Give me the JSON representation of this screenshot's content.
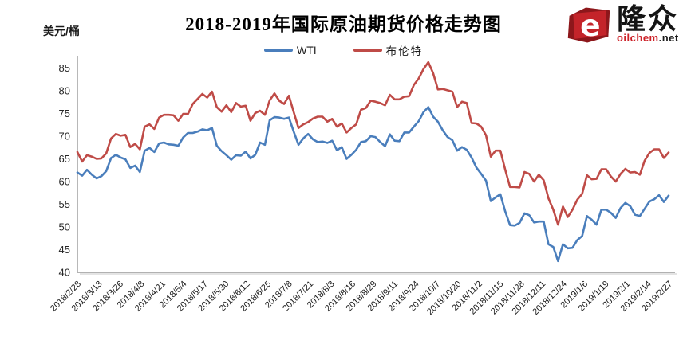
{
  "header": {
    "title": "2018-2019年国际原油期货价格走势图",
    "unit_label": "美元/桶",
    "logo": {
      "brand": "隆众",
      "domain_primary": "oilchem",
      "domain_suffix": ".net",
      "brand_red": "#c4242a",
      "brand_dark_red": "#8d171b"
    }
  },
  "legend": [
    {
      "label": "WTI",
      "color": "#4a7ebc"
    },
    {
      "label": "布伦特",
      "color": "#bf4b47"
    }
  ],
  "chart_data": {
    "type": "line",
    "title": "2018-2019年国际原油期货价格走势图",
    "xlabel": "",
    "ylabel": "美元/桶",
    "ylim": [
      40,
      85
    ],
    "yticks": [
      40,
      45,
      50,
      55,
      60,
      65,
      70,
      75,
      80,
      85
    ],
    "grid": false,
    "legend_position": "top-center",
    "axis_color": "#a6a6a6",
    "x_range": [
      "2018/2/28",
      "2019/2/27"
    ],
    "x_tick_labels": [
      "2018/2/28",
      "2018/3/13",
      "2018/3/26",
      "2018/4/8",
      "2018/4/21",
      "2018/5/4",
      "2018/5/17",
      "2018/5/30",
      "2018/6/12",
      "2018/6/25",
      "2018/7/8",
      "2018/7/21",
      "2018/8/3",
      "2018/8/16",
      "2018/8/29",
      "2018/9/11",
      "2018/9/24",
      "2018/10/7",
      "2018/10/20",
      "2018/11/2",
      "2018/11/15",
      "2018/11/28",
      "2018/12/11",
      "2018/12/24",
      "2019/1/6",
      "2019/1/19",
      "2019/2/1",
      "2019/2/14",
      "2019/2/27"
    ],
    "series": [
      {
        "name": "WTI",
        "color": "#4a7ebc",
        "values": [
          62.0,
          61.3,
          62.6,
          61.5,
          60.7,
          61.2,
          62.3,
          65.2,
          65.9,
          65.3,
          64.9,
          63.0,
          63.5,
          62.1,
          66.8,
          67.4,
          66.5,
          68.4,
          68.6,
          68.2,
          68.1,
          67.9,
          69.7,
          70.7,
          70.7,
          71.0,
          71.5,
          71.3,
          71.8,
          67.9,
          66.7,
          65.8,
          64.8,
          65.8,
          65.7,
          66.6,
          65.1,
          65.9,
          68.6,
          68.1,
          73.5,
          74.2,
          74.1,
          73.8,
          74.1,
          71.0,
          68.1,
          69.5,
          70.5,
          69.3,
          68.7,
          68.8,
          68.5,
          69.0,
          66.9,
          67.6,
          65.0,
          65.9,
          67.0,
          68.7,
          68.9,
          70.0,
          69.8,
          68.7,
          67.8,
          70.4,
          69.0,
          68.9,
          70.8,
          70.8,
          72.1,
          73.3,
          75.3,
          76.4,
          74.3,
          73.2,
          71.3,
          69.8,
          69.1,
          66.8,
          67.6,
          67.0,
          65.3,
          63.1,
          61.7,
          60.2,
          55.7,
          56.5,
          57.2,
          53.4,
          50.4,
          50.3,
          50.9,
          53.0,
          52.6,
          51.0,
          51.2,
          51.2,
          46.2,
          45.6,
          42.5,
          46.2,
          45.3,
          45.4,
          47.1,
          48.0,
          52.4,
          51.6,
          50.5,
          53.8,
          53.8,
          53.1,
          52.0,
          54.2,
          55.3,
          54.6,
          52.7,
          52.4,
          54.0,
          55.6,
          56.1,
          57.0,
          55.5,
          56.9
        ]
      },
      {
        "name": "布伦特",
        "color": "#bf4b47",
        "values": [
          66.5,
          64.4,
          65.8,
          65.5,
          65.0,
          65.1,
          66.2,
          69.5,
          70.5,
          70.1,
          70.3,
          67.6,
          68.3,
          67.1,
          72.1,
          72.6,
          71.6,
          74.1,
          74.7,
          74.7,
          74.6,
          73.4,
          74.9,
          74.9,
          77.1,
          78.2,
          79.3,
          78.5,
          79.8,
          76.4,
          75.4,
          76.8,
          75.3,
          77.3,
          76.5,
          76.7,
          73.4,
          75.1,
          75.6,
          74.7,
          77.9,
          79.4,
          77.8,
          77.1,
          78.9,
          75.3,
          71.8,
          72.6,
          73.1,
          73.9,
          74.3,
          74.3,
          73.2,
          73.8,
          72.1,
          72.8,
          70.8,
          71.8,
          72.6,
          75.8,
          76.2,
          77.8,
          77.6,
          77.3,
          76.8,
          79.1,
          78.1,
          78.1,
          78.7,
          78.8,
          81.3,
          82.7,
          84.8,
          86.3,
          83.9,
          80.3,
          80.4,
          80.1,
          79.8,
          76.4,
          77.6,
          77.3,
          72.9,
          72.8,
          72.1,
          70.2,
          65.5,
          66.8,
          66.8,
          62.6,
          58.8,
          58.8,
          58.7,
          62.1,
          61.7,
          60.0,
          61.5,
          60.3,
          56.3,
          53.8,
          50.5,
          54.5,
          52.2,
          53.8,
          56.0,
          57.3,
          61.4,
          60.5,
          60.6,
          62.7,
          62.7,
          61.1,
          60.0,
          61.7,
          62.8,
          62.0,
          62.1,
          61.5,
          64.6,
          66.3,
          67.1,
          67.1,
          65.2,
          66.4
        ]
      }
    ]
  }
}
